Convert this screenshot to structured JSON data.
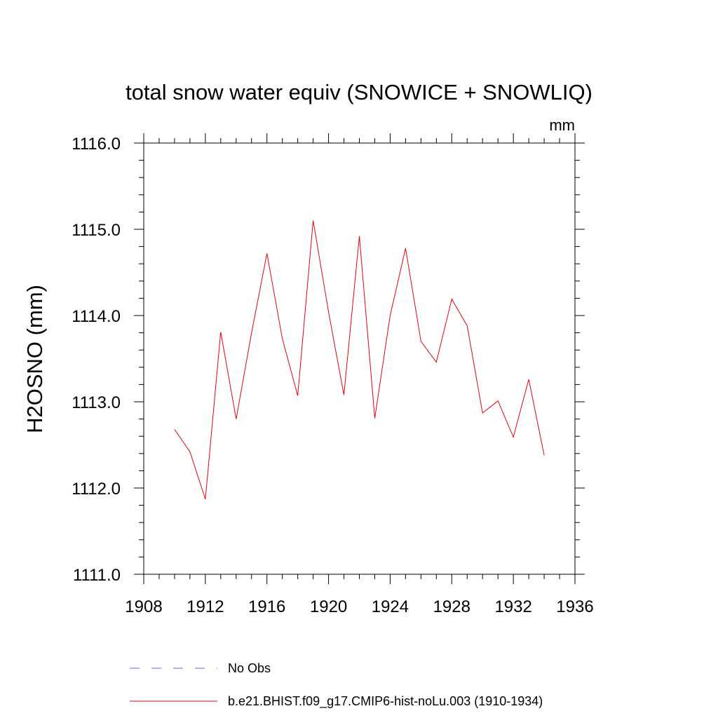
{
  "chart_data": {
    "type": "line",
    "title": "total snow water equiv (SNOWICE + SNOWLIQ)",
    "units_label": "mm",
    "ylabel": "H2OSNO  (mm)",
    "xlabel": "",
    "xlim": [
      1908,
      1936
    ],
    "ylim": [
      1111.0,
      1116.0
    ],
    "x_ticks": [
      "1908",
      "1912",
      "1916",
      "1920",
      "1924",
      "1928",
      "1932",
      "1936"
    ],
    "y_ticks": [
      "1111.0",
      "1112.0",
      "1113.0",
      "1114.0",
      "1115.0",
      "1116.0"
    ],
    "grid": false,
    "legend_position": "bottom",
    "series": [
      {
        "name": "b.e21.BHIST.f09_g17.CMIP6-hist-noLu.003 (1910-1934)",
        "color": "#e8000b",
        "style": "solid",
        "x": [
          1910,
          1911,
          1912,
          1913,
          1914,
          1915,
          1916,
          1917,
          1918,
          1919,
          1920,
          1921,
          1922,
          1923,
          1924,
          1925,
          1926,
          1927,
          1928,
          1929,
          1930,
          1931,
          1932,
          1933,
          1934
        ],
        "y": [
          1112.68,
          1112.42,
          1111.87,
          1113.81,
          1112.8,
          1113.8,
          1114.72,
          1113.73,
          1113.07,
          1115.1,
          1114.04,
          1113.08,
          1114.92,
          1112.81,
          1114.0,
          1114.78,
          1113.7,
          1113.46,
          1114.19,
          1113.88,
          1112.87,
          1113.01,
          1112.59,
          1113.26,
          1112.38
        ]
      }
    ],
    "legend": [
      {
        "label": "No Obs",
        "color": "#6a6ad8",
        "style": "dashed"
      },
      {
        "label": "b.e21.BHIST.f09_g17.CMIP6-hist-noLu.003 (1910-1934)",
        "color": "#e8000b",
        "style": "solid"
      }
    ]
  }
}
